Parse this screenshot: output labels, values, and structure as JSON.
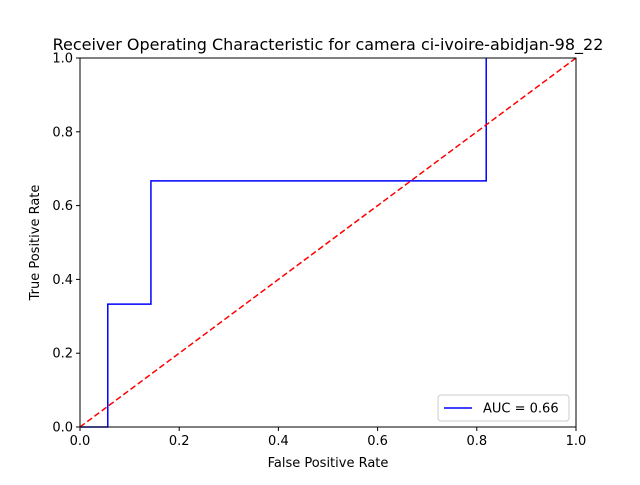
{
  "chart_data": {
    "type": "line",
    "title": "Receiver Operating Characteristic for camera ci-ivoire-abidjan-98_22",
    "xlabel": "False Positive Rate",
    "ylabel": "True Positive Rate",
    "xlim": [
      0.0,
      1.0
    ],
    "ylim": [
      0.0,
      1.0
    ],
    "xticks": [
      "0.0",
      "0.2",
      "0.4",
      "0.6",
      "0.8",
      "1.0"
    ],
    "yticks": [
      "0.0",
      "0.2",
      "0.4",
      "0.6",
      "0.8",
      "1.0"
    ],
    "grid": false,
    "legend_position": "lower right",
    "series": [
      {
        "name": "AUC = 0.66",
        "color": "#0000ff",
        "style": "solid",
        "x": [
          0.0,
          0.056,
          0.056,
          0.143,
          0.143,
          0.819,
          0.819
        ],
        "y": [
          0.0,
          0.0,
          0.333,
          0.333,
          0.667,
          0.667,
          1.0
        ]
      },
      {
        "color": "#ff0000",
        "style": "dashed",
        "x": [
          0.0,
          1.0
        ],
        "y": [
          0.0,
          1.0
        ]
      }
    ]
  }
}
